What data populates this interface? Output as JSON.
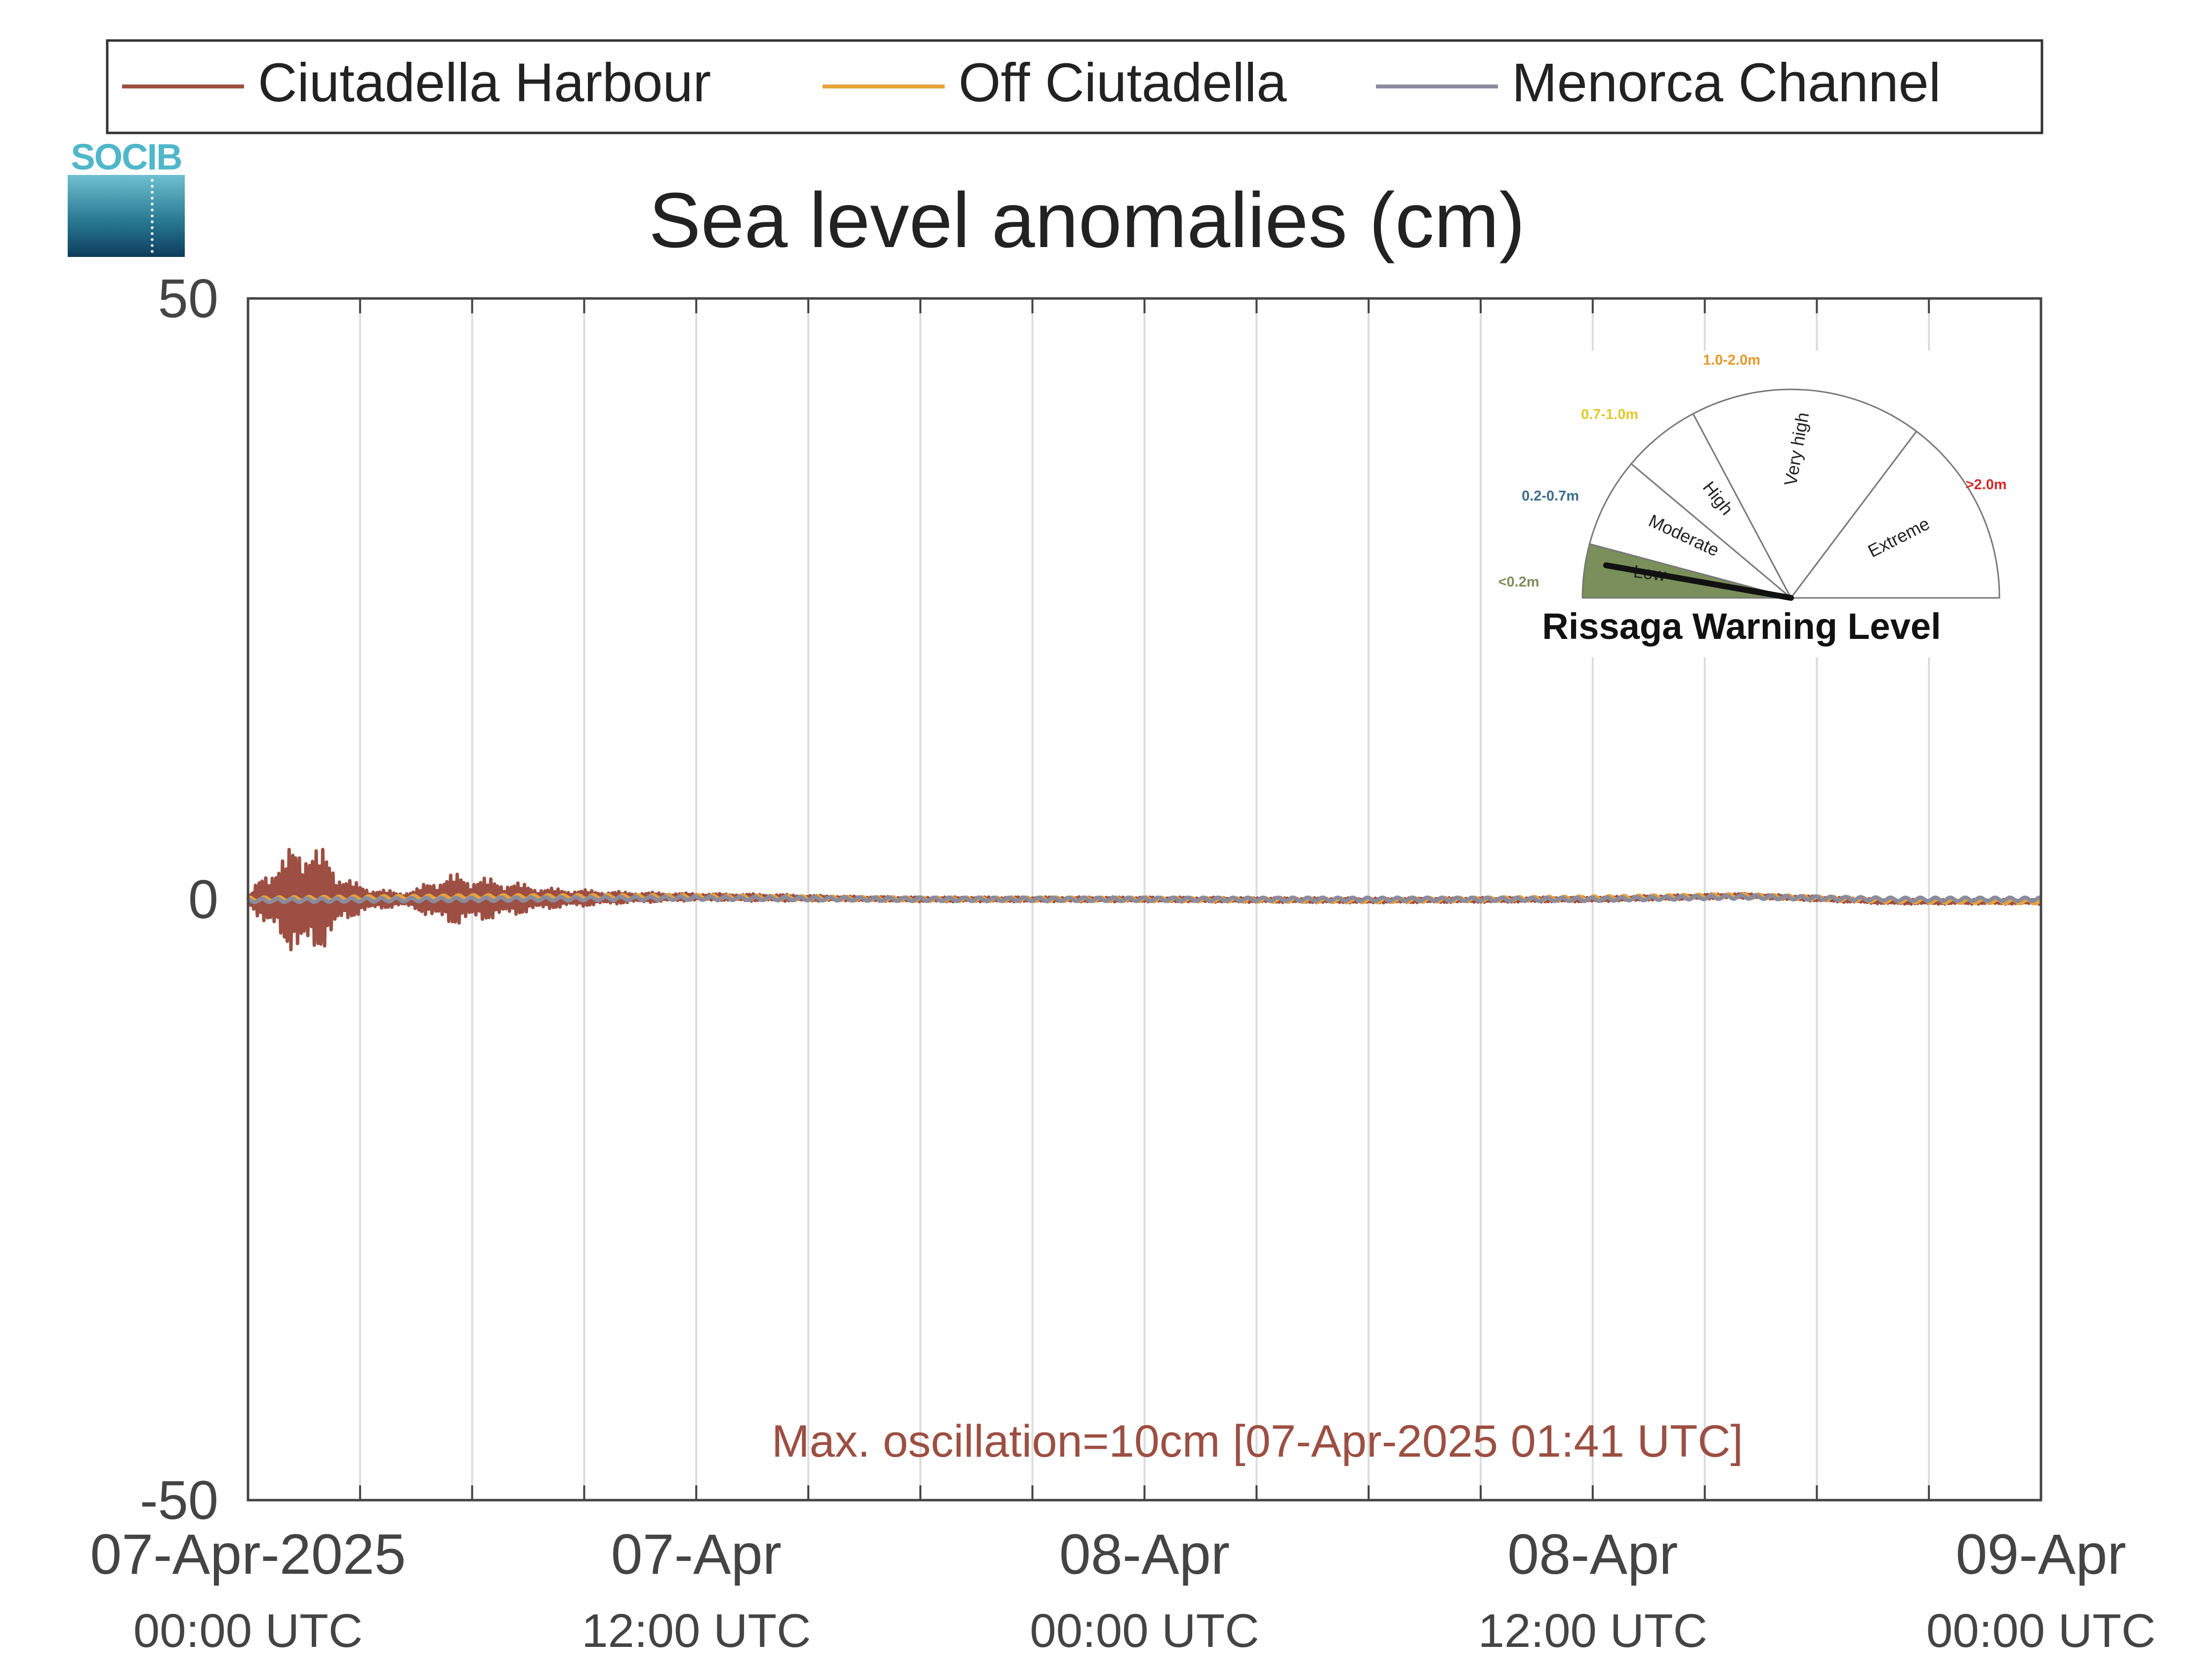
{
  "logo": {
    "text": "SOCIB"
  },
  "chart_data": {
    "type": "line",
    "title": "Sea level anomalies (cm)",
    "xlabel": "",
    "ylabel": "",
    "ylim": [
      -50,
      50
    ],
    "yticks": [
      "50",
      "0",
      "-50"
    ],
    "xlim": [
      "2025-04-07T00:00Z",
      "2025-04-09T00:00Z"
    ],
    "xticks": [
      {
        "line1": "07-Apr-2025",
        "line2": "00:00 UTC"
      },
      {
        "line1": "07-Apr",
        "line2": "12:00 UTC"
      },
      {
        "line1": "08-Apr",
        "line2": "00:00 UTC"
      },
      {
        "line1": "08-Apr",
        "line2": "12:00 UTC"
      },
      {
        "line1": "09-Apr",
        "line2": "00:00 UTC"
      }
    ],
    "grid": "vertical",
    "legend_position": "top",
    "annotation": "Max. oscillation=10cm [07-Apr-2025 01:41 UTC]",
    "series": [
      {
        "name": "Ciutadella Harbour",
        "color": "#9c4f42",
        "envelope_x_hours": [
          0,
          0.5,
          1.0,
          1.5,
          1.7,
          2.0,
          2.5,
          3.0,
          3.5,
          4.0,
          4.5,
          5.0,
          5.5,
          6.0,
          7.0,
          8.0,
          9.0,
          10.0,
          11.0,
          12.0,
          14.0,
          16.0,
          18.0,
          20.0,
          24.0,
          28.0,
          32.0,
          36.0,
          40.0,
          44.0,
          48.0
        ],
        "envelope_amplitude_cm": [
          0.3,
          2.5,
          4.0,
          5.0,
          5.0,
          4.2,
          2.2,
          1.2,
          0.9,
          0.6,
          0.9,
          1.8,
          2.2,
          2.0,
          1.5,
          0.9,
          0.7,
          0.5,
          0.4,
          0.3,
          0.3,
          0.2,
          0.2,
          0.2,
          0.2,
          0.2,
          0.2,
          0.2,
          0.2,
          0.2,
          0.2
        ],
        "mean_x_hours": [
          0,
          6,
          12,
          18,
          24,
          30,
          36,
          40,
          44,
          48
        ],
        "mean_cm": [
          0,
          0,
          0.2,
          0,
          0,
          -0.1,
          0,
          0.3,
          -0.2,
          -0.2
        ]
      },
      {
        "name": "Off Ciutadella",
        "color": "#e8a23a",
        "mean_x_hours": [
          0,
          6,
          12,
          18,
          24,
          30,
          36,
          40,
          44,
          48
        ],
        "mean_cm": [
          0,
          0.2,
          0.2,
          0,
          0,
          -0.1,
          0.1,
          0.3,
          -0.1,
          -0.2
        ]
      },
      {
        "name": "Menorca Channel",
        "color": "#8a8c9e",
        "mean_x_hours": [
          0,
          6,
          12,
          18,
          24,
          30,
          36,
          40,
          44,
          48
        ],
        "mean_cm": [
          -0.1,
          0,
          0.1,
          0,
          0,
          0,
          0,
          0.2,
          0,
          0
        ]
      }
    ]
  },
  "gauge": {
    "title": "Rissaga Warning Level",
    "value_level": "Low",
    "sectors": [
      {
        "label": "Low",
        "range": "<0.2m",
        "color": "#7a8f5a",
        "range_color": "#7a8f5a",
        "angle_from": 0,
        "angle_to": 15
      },
      {
        "label": "Moderate",
        "range": "0.2-0.7m",
        "color": "#ffffff",
        "range_color": "#3c6d8a",
        "angle_from": 15,
        "angle_to": 40
      },
      {
        "label": "High",
        "range": "0.7-1.0m",
        "color": "#ffffff",
        "range_color": "#e3c82a",
        "angle_from": 40,
        "angle_to": 62
      },
      {
        "label": "Very high",
        "range": "1.0-2.0m",
        "color": "#ffffff",
        "range_color": "#e8962b",
        "angle_from": 62,
        "angle_to": 127
      },
      {
        "label": "Extreme",
        "range": ">2.0m",
        "color": "#ffffff",
        "range_color": "#d8262a",
        "angle_from": 127,
        "angle_to": 180
      }
    ]
  }
}
